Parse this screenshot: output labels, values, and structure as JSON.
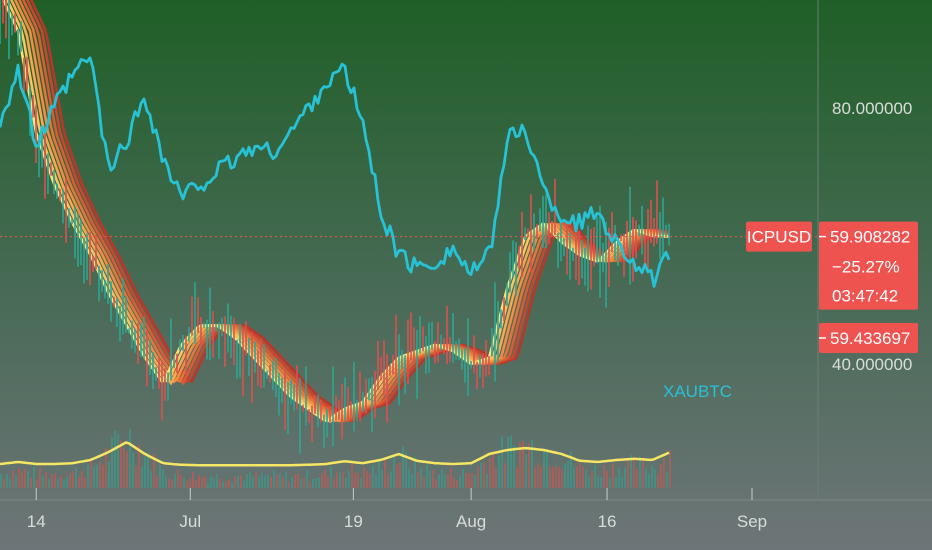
{
  "chart_data": {
    "type": "line",
    "symbol": "ICPUSD",
    "compare_label": "XAUBTC",
    "x_ticks": [
      "14",
      "Jul",
      "19",
      "Aug",
      "16",
      "Sep"
    ],
    "y_ticks": [
      "80.000000",
      "40.000000"
    ],
    "ylim": [
      28,
      100
    ],
    "last_price": "59.908282",
    "change_pct": "−25.27%",
    "countdown": "03:47:42",
    "second_price": "59.433697",
    "last_value": 59.908282,
    "second_value": 59.433697,
    "grid": false,
    "legend": "none",
    "colors": {
      "price_tag": "#ef5350",
      "compare_line": "#27c2d6",
      "volume_ma": "#f5e663",
      "ribbon_fast": "#fde37a",
      "ribbon_slow": "#b7382b",
      "volume_up": "#2fa591",
      "volume_down": "#d9534f",
      "background_top": "#1f5f27",
      "background_bottom": "#6e7578"
    },
    "dates": [
      "06-10",
      "06-12",
      "06-14",
      "06-16",
      "06-18",
      "06-20",
      "06-22",
      "06-24",
      "06-26",
      "06-28",
      "06-30",
      "07-02",
      "07-04",
      "07-06",
      "07-08",
      "07-10",
      "07-12",
      "07-14",
      "07-16",
      "07-18",
      "07-20",
      "07-22",
      "07-24",
      "07-26",
      "07-28",
      "07-30",
      "08-01",
      "08-03",
      "08-05",
      "08-07",
      "08-09",
      "08-11",
      "08-13",
      "08-15",
      "08-17",
      "08-19",
      "08-21",
      "08-23"
    ],
    "series": [
      {
        "values": [
          98,
          92,
          76,
          68,
          62,
          57,
          51,
          46,
          41,
          37,
          43,
          46,
          46,
          44,
          41,
          38,
          35,
          33,
          31,
          33,
          34,
          38,
          41,
          42,
          43,
          42,
          40,
          41,
          52,
          60,
          62,
          59,
          57,
          56,
          59,
          61,
          60,
          59.908282
        ]
      },
      {
        "values": [
          78,
          86,
          74,
          80,
          85,
          88,
          70,
          75,
          82,
          72,
          66,
          68,
          70,
          72,
          74,
          73,
          76,
          80,
          84,
          86,
          78,
          64,
          57,
          55,
          56,
          58,
          54,
          57,
          75,
          77,
          67,
          63,
          62,
          64,
          59,
          56,
          53,
          57
        ]
      }
    ],
    "volume_ma": [
      0.2,
      0.25,
      0.2,
      0.2,
      0.22,
      0.3,
      0.5,
      0.75,
      0.45,
      0.22,
      0.18,
      0.17,
      0.17,
      0.17,
      0.17,
      0.17,
      0.17,
      0.18,
      0.2,
      0.27,
      0.22,
      0.3,
      0.45,
      0.28,
      0.22,
      0.2,
      0.22,
      0.45,
      0.55,
      0.6,
      0.55,
      0.45,
      0.28,
      0.25,
      0.3,
      0.33,
      0.3,
      0.5
    ]
  }
}
